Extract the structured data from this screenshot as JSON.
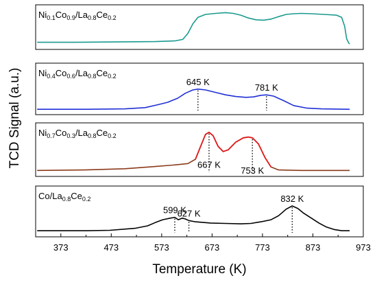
{
  "chart_data": {
    "type": "line",
    "title": "",
    "xlabel": "Temperature (K)",
    "ylabel": "TCD Signal (a.u.)",
    "xlim": [
      323,
      973
    ],
    "xticks": [
      373,
      473,
      573,
      673,
      773,
      873,
      973
    ],
    "grid": false,
    "legend": "none",
    "panels": [
      {
        "label": {
          "parts": [
            {
              "t": "Ni",
              "sub": false
            },
            {
              "t": "0.1",
              "sub": true
            },
            {
              "t": "Co",
              "sub": false
            },
            {
              "t": "0.9",
              "sub": true
            },
            {
              "t": "/La",
              "sub": false
            },
            {
              "t": "0.8",
              "sub": true
            },
            {
              "t": "Ce",
              "sub": false
            },
            {
              "t": "0.2",
              "sub": true
            }
          ]
        },
        "color": "#1a9a8e",
        "ylim": [
          0,
          1
        ],
        "points": [
          [
            326,
            0.1
          ],
          [
            400,
            0.1
          ],
          [
            480,
            0.11
          ],
          [
            560,
            0.12
          ],
          [
            600,
            0.14
          ],
          [
            615,
            0.18
          ],
          [
            625,
            0.35
          ],
          [
            635,
            0.62
          ],
          [
            645,
            0.8
          ],
          [
            660,
            0.88
          ],
          [
            680,
            0.91
          ],
          [
            700,
            0.93
          ],
          [
            715,
            0.91
          ],
          [
            730,
            0.86
          ],
          [
            745,
            0.78
          ],
          [
            760,
            0.73
          ],
          [
            775,
            0.72
          ],
          [
            790,
            0.75
          ],
          [
            805,
            0.82
          ],
          [
            820,
            0.88
          ],
          [
            835,
            0.9
          ],
          [
            850,
            0.91
          ],
          [
            870,
            0.9
          ],
          [
            895,
            0.88
          ],
          [
            920,
            0.86
          ],
          [
            930,
            0.8
          ],
          [
            936,
            0.55
          ],
          [
            940,
            0.2
          ],
          [
            944,
            0.08
          ],
          [
            946,
            0.05
          ]
        ],
        "peaks": []
      },
      {
        "label": {
          "parts": [
            {
              "t": "Ni",
              "sub": false
            },
            {
              "t": "0.4",
              "sub": true
            },
            {
              "t": "Co",
              "sub": false
            },
            {
              "t": "0.6",
              "sub": true
            },
            {
              "t": "/La",
              "sub": false
            },
            {
              "t": "0.8",
              "sub": true
            },
            {
              "t": "Ce",
              "sub": false
            },
            {
              "t": "0.2",
              "sub": true
            }
          ]
        },
        "color": "#1f2fd6",
        "ylim": [
          0,
          1
        ],
        "points": [
          [
            326,
            0.03
          ],
          [
            420,
            0.03
          ],
          [
            500,
            0.04
          ],
          [
            540,
            0.07
          ],
          [
            565,
            0.14
          ],
          [
            585,
            0.2
          ],
          [
            605,
            0.3
          ],
          [
            620,
            0.42
          ],
          [
            635,
            0.5
          ],
          [
            645,
            0.52
          ],
          [
            660,
            0.5
          ],
          [
            680,
            0.44
          ],
          [
            700,
            0.38
          ],
          [
            720,
            0.34
          ],
          [
            740,
            0.32
          ],
          [
            755,
            0.33
          ],
          [
            770,
            0.37
          ],
          [
            781,
            0.38
          ],
          [
            795,
            0.35
          ],
          [
            815,
            0.24
          ],
          [
            835,
            0.12
          ],
          [
            860,
            0.06
          ],
          [
            890,
            0.04
          ],
          [
            946,
            0.03
          ]
        ],
        "peaks": [
          {
            "x": 645,
            "y": 0.52,
            "label": "645 K",
            "label_side": "above"
          },
          {
            "x": 781,
            "y": 0.38,
            "label": "781 K",
            "label_side": "above"
          }
        ]
      },
      {
        "label": {
          "parts": [
            {
              "t": "Ni",
              "sub": false
            },
            {
              "t": "0.7",
              "sub": true
            },
            {
              "t": "Co",
              "sub": false
            },
            {
              "t": "0.3",
              "sub": true
            },
            {
              "t": "/La",
              "sub": false
            },
            {
              "t": "0.8",
              "sub": true
            },
            {
              "t": "Ce",
              "sub": false
            },
            {
              "t": "0.2",
              "sub": true
            }
          ]
        },
        "color": "#8b3a1a",
        "highlight_color": "#e01b1b",
        "highlight_range": [
          630,
          800
        ],
        "ylim": [
          0,
          1
        ],
        "points": [
          [
            326,
            0.04
          ],
          [
            420,
            0.05
          ],
          [
            500,
            0.08
          ],
          [
            560,
            0.13
          ],
          [
            600,
            0.17
          ],
          [
            625,
            0.2
          ],
          [
            640,
            0.3
          ],
          [
            652,
            0.65
          ],
          [
            660,
            0.88
          ],
          [
            667,
            0.93
          ],
          [
            675,
            0.85
          ],
          [
            685,
            0.6
          ],
          [
            695,
            0.48
          ],
          [
            705,
            0.52
          ],
          [
            720,
            0.7
          ],
          [
            735,
            0.8
          ],
          [
            745,
            0.82
          ],
          [
            753,
            0.8
          ],
          [
            765,
            0.66
          ],
          [
            778,
            0.34
          ],
          [
            790,
            0.12
          ],
          [
            805,
            0.05
          ],
          [
            850,
            0.04
          ],
          [
            946,
            0.04
          ]
        ],
        "peaks": [
          {
            "x": 667,
            "y": 0.93,
            "label": "667 K",
            "label_side": "below"
          },
          {
            "x": 753,
            "y": 0.8,
            "label": "753 K",
            "label_side": "below"
          }
        ]
      },
      {
        "label": {
          "parts": [
            {
              "t": "Co/La",
              "sub": false
            },
            {
              "t": "0.8",
              "sub": true
            },
            {
              "t": "Ce",
              "sub": false
            },
            {
              "t": "0.2",
              "sub": true
            }
          ]
        },
        "color": "#000000",
        "ylim": [
          0,
          1
        ],
        "points": [
          [
            326,
            0.05
          ],
          [
            420,
            0.05
          ],
          [
            470,
            0.06
          ],
          [
            520,
            0.11
          ],
          [
            545,
            0.17
          ],
          [
            560,
            0.25
          ],
          [
            575,
            0.32
          ],
          [
            590,
            0.36
          ],
          [
            599,
            0.38
          ],
          [
            606,
            0.32
          ],
          [
            614,
            0.36
          ],
          [
            620,
            0.34
          ],
          [
            627,
            0.3
          ],
          [
            640,
            0.27
          ],
          [
            670,
            0.24
          ],
          [
            700,
            0.23
          ],
          [
            730,
            0.22
          ],
          [
            750,
            0.23
          ],
          [
            770,
            0.27
          ],
          [
            790,
            0.32
          ],
          [
            805,
            0.42
          ],
          [
            820,
            0.58
          ],
          [
            832,
            0.66
          ],
          [
            843,
            0.6
          ],
          [
            855,
            0.48
          ],
          [
            870,
            0.36
          ],
          [
            885,
            0.24
          ],
          [
            900,
            0.14
          ],
          [
            915,
            0.08
          ],
          [
            930,
            0.05
          ],
          [
            946,
            0.05
          ]
        ],
        "peaks": [
          {
            "x": 599,
            "y": 0.38,
            "label": "599 K",
            "label_side": "above"
          },
          {
            "x": 627,
            "y": 0.3,
            "label": "627 K",
            "label_side": "above"
          },
          {
            "x": 832,
            "y": 0.66,
            "label": "832 K",
            "label_side": "above"
          }
        ]
      }
    ]
  }
}
